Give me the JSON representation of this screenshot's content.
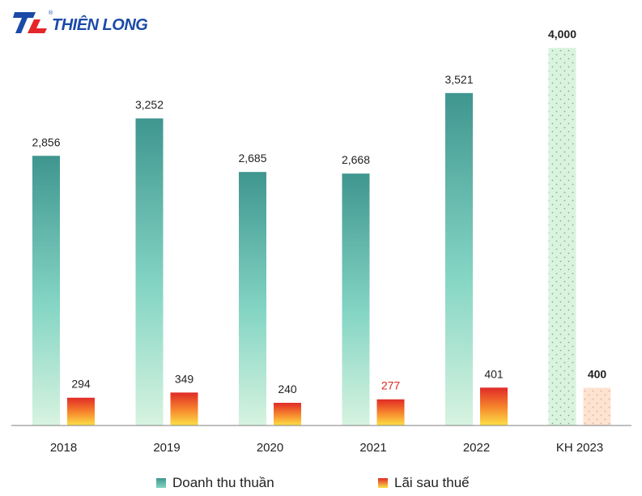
{
  "logo": {
    "text": "THIÊN LONG",
    "registered": "®"
  },
  "chart_data": {
    "type": "bar",
    "title": "",
    "categories": [
      "2018",
      "2019",
      "2020",
      "2021",
      "2022",
      "KH 2023"
    ],
    "series": [
      {
        "name": "Doanh thu thuần",
        "values": [
          2856,
          3252,
          2685,
          2668,
          3521,
          4000
        ],
        "labels": [
          "2,856",
          "3,252",
          "2,685",
          "2,668",
          "3,521",
          "4,000"
        ]
      },
      {
        "name": "Lãi sau thuế",
        "values": [
          294,
          349,
          240,
          277,
          401,
          400
        ],
        "labels": [
          "294",
          "349",
          "240",
          "277",
          "401",
          "400"
        ]
      }
    ],
    "ylim": [
      0,
      4000
    ],
    "highlight_label_index": 3,
    "plan_category_index": 5,
    "grid": false,
    "legend_position": "bottom"
  },
  "colors": {
    "revenue_top": "#3f968f",
    "revenue_bottom": "#d7f3e0",
    "profit_top": "#e02a27",
    "profit_bottom": "#fde046",
    "plan_revenue_fill": "#d9f3df",
    "plan_revenue_dot": "#7fb394",
    "plan_profit_fill": "#fde4d2",
    "plan_profit_dot": "#e8a98a",
    "highlight_text": "#e0261f",
    "label_text": "#222222",
    "axis": "#808080",
    "logo_blue": "#1b4aa8",
    "logo_red": "#e4262a"
  }
}
